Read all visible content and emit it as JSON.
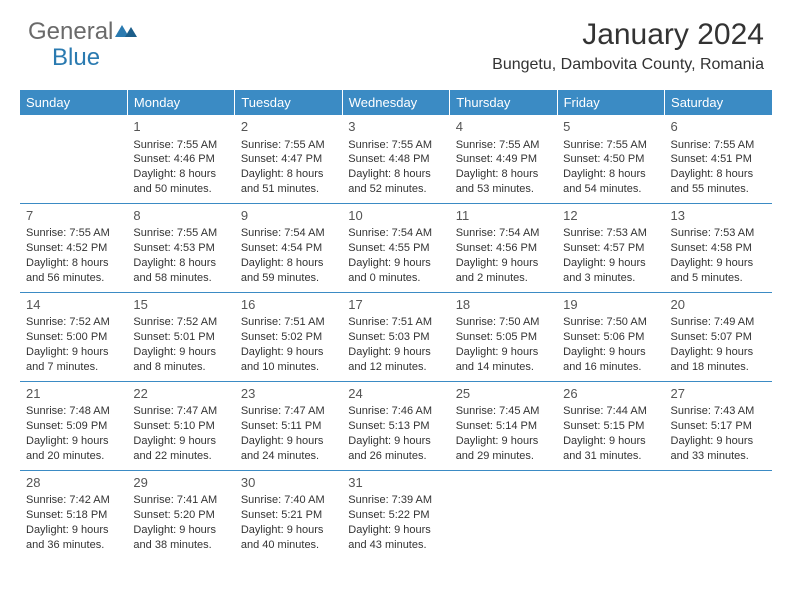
{
  "logo": {
    "part1": "General",
    "part2": "Blue"
  },
  "title": "January 2024",
  "location": "Bungetu, Dambovita County, Romania",
  "headers": [
    "Sunday",
    "Monday",
    "Tuesday",
    "Wednesday",
    "Thursday",
    "Friday",
    "Saturday"
  ],
  "colors": {
    "header_bg": "#3b8bc4",
    "header_text": "#ffffff",
    "border": "#3b8bc4",
    "logo_blue": "#2a7ab0"
  },
  "weeks": [
    [
      null,
      {
        "n": "1",
        "sr": "Sunrise: 7:55 AM",
        "ss": "Sunset: 4:46 PM",
        "d1": "Daylight: 8 hours",
        "d2": "and 50 minutes."
      },
      {
        "n": "2",
        "sr": "Sunrise: 7:55 AM",
        "ss": "Sunset: 4:47 PM",
        "d1": "Daylight: 8 hours",
        "d2": "and 51 minutes."
      },
      {
        "n": "3",
        "sr": "Sunrise: 7:55 AM",
        "ss": "Sunset: 4:48 PM",
        "d1": "Daylight: 8 hours",
        "d2": "and 52 minutes."
      },
      {
        "n": "4",
        "sr": "Sunrise: 7:55 AM",
        "ss": "Sunset: 4:49 PM",
        "d1": "Daylight: 8 hours",
        "d2": "and 53 minutes."
      },
      {
        "n": "5",
        "sr": "Sunrise: 7:55 AM",
        "ss": "Sunset: 4:50 PM",
        "d1": "Daylight: 8 hours",
        "d2": "and 54 minutes."
      },
      {
        "n": "6",
        "sr": "Sunrise: 7:55 AM",
        "ss": "Sunset: 4:51 PM",
        "d1": "Daylight: 8 hours",
        "d2": "and 55 minutes."
      }
    ],
    [
      {
        "n": "7",
        "sr": "Sunrise: 7:55 AM",
        "ss": "Sunset: 4:52 PM",
        "d1": "Daylight: 8 hours",
        "d2": "and 56 minutes."
      },
      {
        "n": "8",
        "sr": "Sunrise: 7:55 AM",
        "ss": "Sunset: 4:53 PM",
        "d1": "Daylight: 8 hours",
        "d2": "and 58 minutes."
      },
      {
        "n": "9",
        "sr": "Sunrise: 7:54 AM",
        "ss": "Sunset: 4:54 PM",
        "d1": "Daylight: 8 hours",
        "d2": "and 59 minutes."
      },
      {
        "n": "10",
        "sr": "Sunrise: 7:54 AM",
        "ss": "Sunset: 4:55 PM",
        "d1": "Daylight: 9 hours",
        "d2": "and 0 minutes."
      },
      {
        "n": "11",
        "sr": "Sunrise: 7:54 AM",
        "ss": "Sunset: 4:56 PM",
        "d1": "Daylight: 9 hours",
        "d2": "and 2 minutes."
      },
      {
        "n": "12",
        "sr": "Sunrise: 7:53 AM",
        "ss": "Sunset: 4:57 PM",
        "d1": "Daylight: 9 hours",
        "d2": "and 3 minutes."
      },
      {
        "n": "13",
        "sr": "Sunrise: 7:53 AM",
        "ss": "Sunset: 4:58 PM",
        "d1": "Daylight: 9 hours",
        "d2": "and 5 minutes."
      }
    ],
    [
      {
        "n": "14",
        "sr": "Sunrise: 7:52 AM",
        "ss": "Sunset: 5:00 PM",
        "d1": "Daylight: 9 hours",
        "d2": "and 7 minutes."
      },
      {
        "n": "15",
        "sr": "Sunrise: 7:52 AM",
        "ss": "Sunset: 5:01 PM",
        "d1": "Daylight: 9 hours",
        "d2": "and 8 minutes."
      },
      {
        "n": "16",
        "sr": "Sunrise: 7:51 AM",
        "ss": "Sunset: 5:02 PM",
        "d1": "Daylight: 9 hours",
        "d2": "and 10 minutes."
      },
      {
        "n": "17",
        "sr": "Sunrise: 7:51 AM",
        "ss": "Sunset: 5:03 PM",
        "d1": "Daylight: 9 hours",
        "d2": "and 12 minutes."
      },
      {
        "n": "18",
        "sr": "Sunrise: 7:50 AM",
        "ss": "Sunset: 5:05 PM",
        "d1": "Daylight: 9 hours",
        "d2": "and 14 minutes."
      },
      {
        "n": "19",
        "sr": "Sunrise: 7:50 AM",
        "ss": "Sunset: 5:06 PM",
        "d1": "Daylight: 9 hours",
        "d2": "and 16 minutes."
      },
      {
        "n": "20",
        "sr": "Sunrise: 7:49 AM",
        "ss": "Sunset: 5:07 PM",
        "d1": "Daylight: 9 hours",
        "d2": "and 18 minutes."
      }
    ],
    [
      {
        "n": "21",
        "sr": "Sunrise: 7:48 AM",
        "ss": "Sunset: 5:09 PM",
        "d1": "Daylight: 9 hours",
        "d2": "and 20 minutes."
      },
      {
        "n": "22",
        "sr": "Sunrise: 7:47 AM",
        "ss": "Sunset: 5:10 PM",
        "d1": "Daylight: 9 hours",
        "d2": "and 22 minutes."
      },
      {
        "n": "23",
        "sr": "Sunrise: 7:47 AM",
        "ss": "Sunset: 5:11 PM",
        "d1": "Daylight: 9 hours",
        "d2": "and 24 minutes."
      },
      {
        "n": "24",
        "sr": "Sunrise: 7:46 AM",
        "ss": "Sunset: 5:13 PM",
        "d1": "Daylight: 9 hours",
        "d2": "and 26 minutes."
      },
      {
        "n": "25",
        "sr": "Sunrise: 7:45 AM",
        "ss": "Sunset: 5:14 PM",
        "d1": "Daylight: 9 hours",
        "d2": "and 29 minutes."
      },
      {
        "n": "26",
        "sr": "Sunrise: 7:44 AM",
        "ss": "Sunset: 5:15 PM",
        "d1": "Daylight: 9 hours",
        "d2": "and 31 minutes."
      },
      {
        "n": "27",
        "sr": "Sunrise: 7:43 AM",
        "ss": "Sunset: 5:17 PM",
        "d1": "Daylight: 9 hours",
        "d2": "and 33 minutes."
      }
    ],
    [
      {
        "n": "28",
        "sr": "Sunrise: 7:42 AM",
        "ss": "Sunset: 5:18 PM",
        "d1": "Daylight: 9 hours",
        "d2": "and 36 minutes."
      },
      {
        "n": "29",
        "sr": "Sunrise: 7:41 AM",
        "ss": "Sunset: 5:20 PM",
        "d1": "Daylight: 9 hours",
        "d2": "and 38 minutes."
      },
      {
        "n": "30",
        "sr": "Sunrise: 7:40 AM",
        "ss": "Sunset: 5:21 PM",
        "d1": "Daylight: 9 hours",
        "d2": "and 40 minutes."
      },
      {
        "n": "31",
        "sr": "Sunrise: 7:39 AM",
        "ss": "Sunset: 5:22 PM",
        "d1": "Daylight: 9 hours",
        "d2": "and 43 minutes."
      },
      null,
      null,
      null
    ]
  ]
}
